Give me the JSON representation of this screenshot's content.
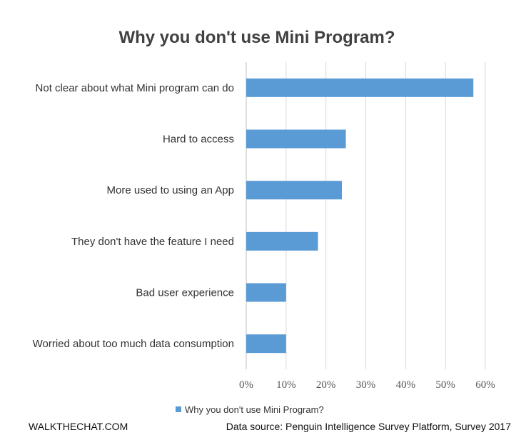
{
  "chart_data": {
    "type": "bar",
    "orientation": "horizontal",
    "title": "Why you don't use Mini Program?",
    "categories": [
      "Not clear about what Mini program can do",
      "Hard to access",
      "More used to using an App",
      "They don't have the feature I need",
      "Bad user experience",
      "Worried about too much data consumption"
    ],
    "series": [
      {
        "name": "Why you don't use Mini Program?",
        "values": [
          57,
          25,
          24,
          18,
          10,
          10
        ],
        "color": "#5B9BD5"
      }
    ],
    "xlim": [
      0,
      60
    ],
    "xticks": [
      0,
      10,
      20,
      30,
      40,
      50,
      60
    ],
    "xtick_labels": [
      "0%",
      "10%",
      "20%",
      "30%",
      "40%",
      "50%",
      "60%"
    ],
    "grid": "vertical",
    "legend_placement": "bottom"
  },
  "footer": {
    "brand": "WALKTHECHAT.COM",
    "source": "Data source: Penguin Intelligence Survey Platform, Survey 2017"
  },
  "colors": {
    "bar": "#5B9BD5",
    "grid": "#d9d9d9",
    "title": "#404040"
  }
}
